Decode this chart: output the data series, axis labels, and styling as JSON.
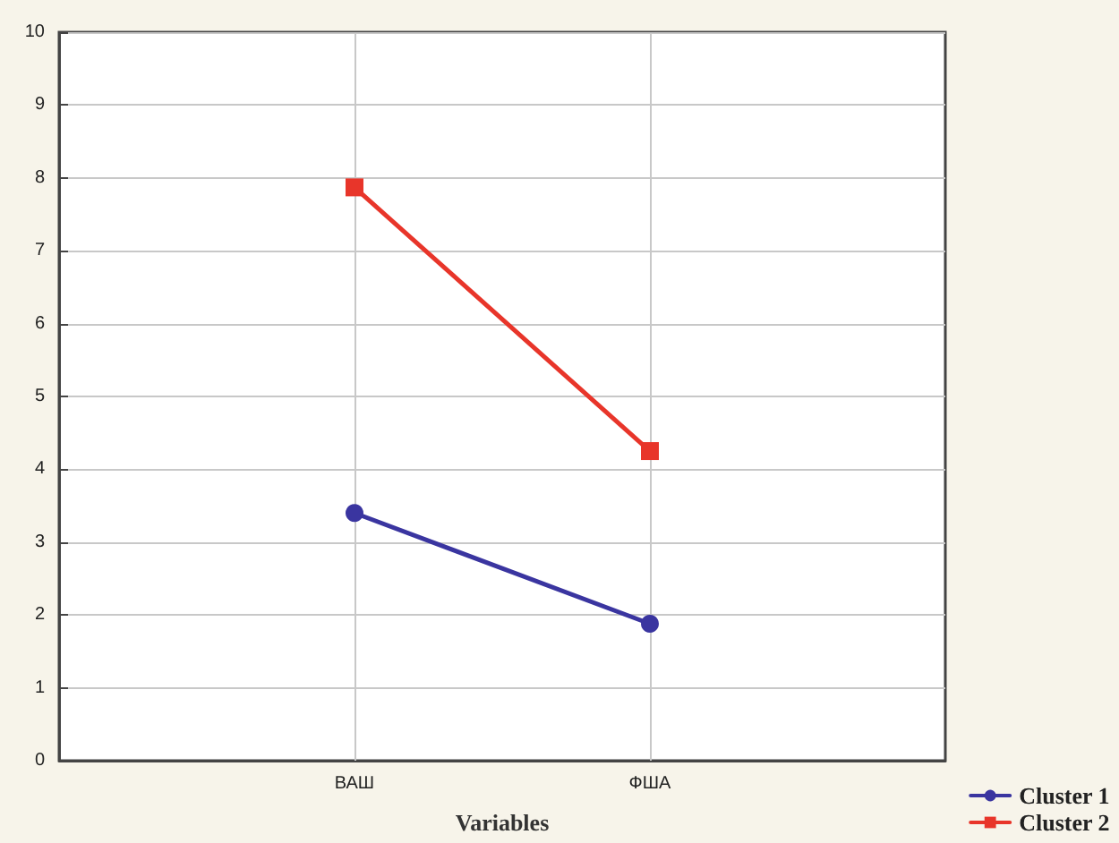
{
  "chart_data": {
    "type": "line",
    "xlabel": "Variables",
    "categories": [
      "ВАШ",
      "ФША"
    ],
    "series": [
      {
        "name": "Cluster 1",
        "color": "#3a35a0",
        "marker": "circle",
        "values": [
          3.4,
          1.88
        ]
      },
      {
        "name": "Cluster 2",
        "color": "#e8352a",
        "marker": "square",
        "values": [
          7.87,
          4.25
        ]
      }
    ],
    "ylim": [
      0,
      10
    ],
    "yticks": [
      0,
      1,
      2,
      3,
      4,
      5,
      6,
      7,
      8,
      9,
      10
    ],
    "grid": true,
    "legend": "bottom right",
    "line_style": "solid"
  }
}
